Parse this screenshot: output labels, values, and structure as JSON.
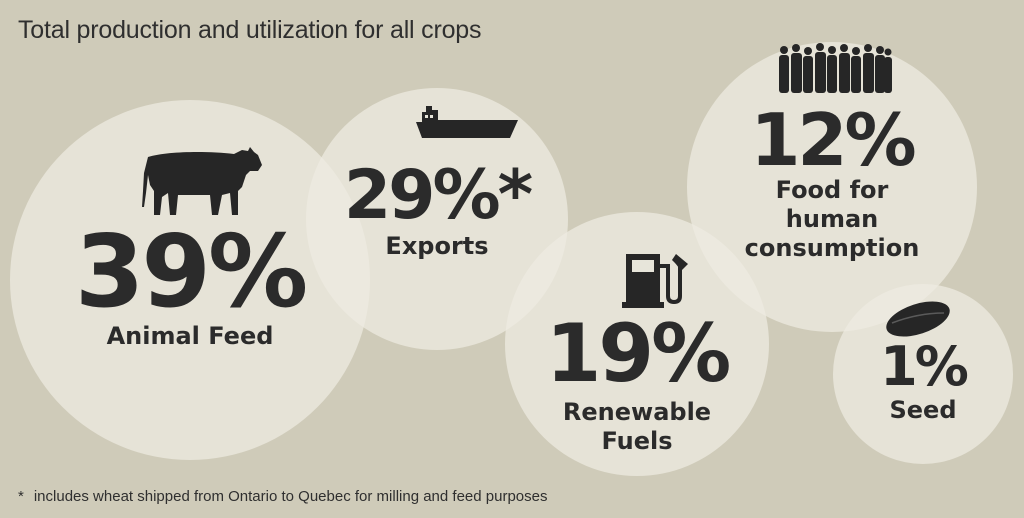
{
  "title": "Total production and utilization for all crops",
  "footnote": {
    "marker": "*",
    "text": "includes wheat shipped from Ontario to Quebec for milling and feed purposes"
  },
  "colors": {
    "background": "#cfcbb9",
    "bubble": "#eeece2",
    "text": "#2b2b2b",
    "icons": "#262626"
  },
  "icons": [
    "cow-icon",
    "cargo-ship-icon",
    "fuel-pump-icon",
    "people-crowd-icon",
    "seed-icon"
  ],
  "chart_data": {
    "type": "bubble-infographic",
    "title": "Total production and utilization for all crops",
    "unit": "%",
    "categories": [
      "Animal Feed",
      "Exports",
      "Renewable Fuels",
      "Food for human consumption",
      "Seed"
    ],
    "values": [
      39,
      29,
      19,
      12,
      1
    ],
    "items": [
      {
        "label_lines": [
          "Animal Feed"
        ],
        "pct_text": "39%",
        "value": 39,
        "icon": "cow-icon"
      },
      {
        "label_lines": [
          "Exports"
        ],
        "pct_text": "29%*",
        "value": 29,
        "icon": "cargo-ship-icon"
      },
      {
        "label_lines": [
          "Renewable",
          "Fuels"
        ],
        "pct_text": "19%",
        "value": 19,
        "icon": "fuel-pump-icon"
      },
      {
        "label_lines": [
          "Food for",
          "human",
          "consumption"
        ],
        "pct_text": "12%",
        "value": 12,
        "icon": "people-crowd-icon"
      },
      {
        "label_lines": [
          "Seed"
        ],
        "pct_text": "1%",
        "value": 1,
        "icon": "seed-icon"
      }
    ]
  }
}
